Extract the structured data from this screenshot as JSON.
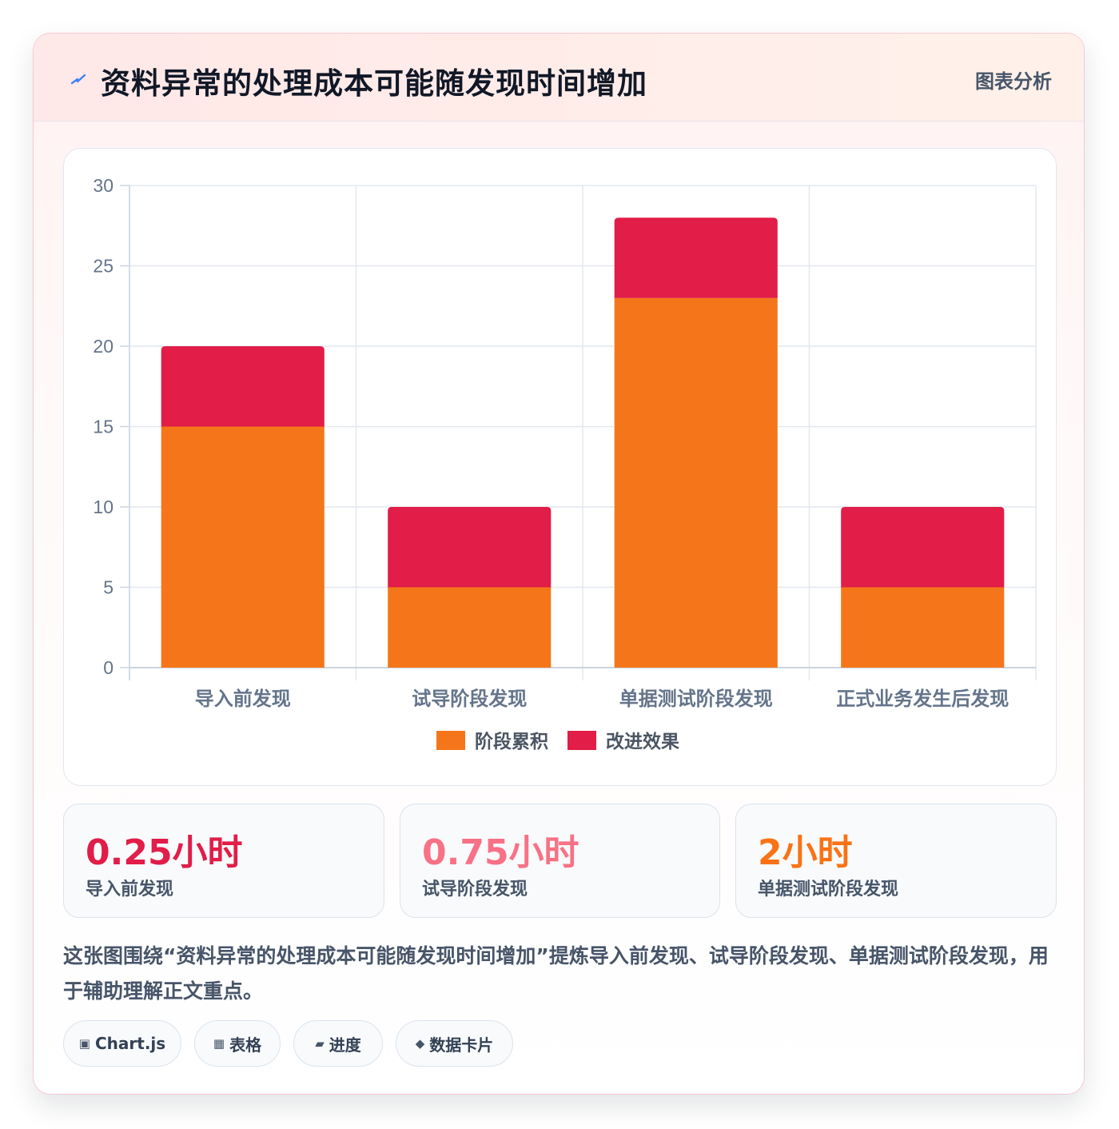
{
  "header": {
    "title": "资料异常的处理成本可能随发现时间增加",
    "badge": "图表分析",
    "icon": "bolt-icon",
    "icon_color": "#3b82f6"
  },
  "chart_data": {
    "type": "bar",
    "stacked": true,
    "categories": [
      "导入前发现",
      "试导阶段发现",
      "单据测试阶段发现",
      "正式业务发生后发现"
    ],
    "series": [
      {
        "name": "阶段累积",
        "values": [
          15,
          5,
          23,
          5
        ],
        "color": "#f5761a"
      },
      {
        "name": "改进效果",
        "values": [
          5,
          5,
          5,
          5
        ],
        "color": "#e11d48"
      }
    ],
    "ylim": [
      0,
      30
    ],
    "yticks": [
      0,
      5,
      10,
      15,
      20,
      25,
      30
    ],
    "grid": true,
    "legend_position": "bottom",
    "title": "",
    "xlabel": "",
    "ylabel": ""
  },
  "stats": [
    {
      "value": "0.25小时",
      "label": "导入前发现",
      "color": "#e11d48"
    },
    {
      "value": "0.75小时",
      "label": "试导阶段发现",
      "color": "#f87185"
    },
    {
      "value": "2小时",
      "label": "单据测试阶段发现",
      "color": "#f97316"
    }
  ],
  "description": "这张图围绕“资料异常的处理成本可能随发现时间增加”提炼导入前发现、试导阶段发现、单据测试阶段发现，用于辅助理解正文重点。",
  "chips": [
    {
      "icon": "▣",
      "icon_name": "chart-icon",
      "label": "Chart.js"
    },
    {
      "icon": "▦",
      "icon_name": "table-icon",
      "label": "表格"
    },
    {
      "icon": "▰",
      "icon_name": "progress-icon",
      "label": "进度"
    },
    {
      "icon": "◆",
      "icon_name": "data-card-icon",
      "label": "数据卡片"
    }
  ]
}
